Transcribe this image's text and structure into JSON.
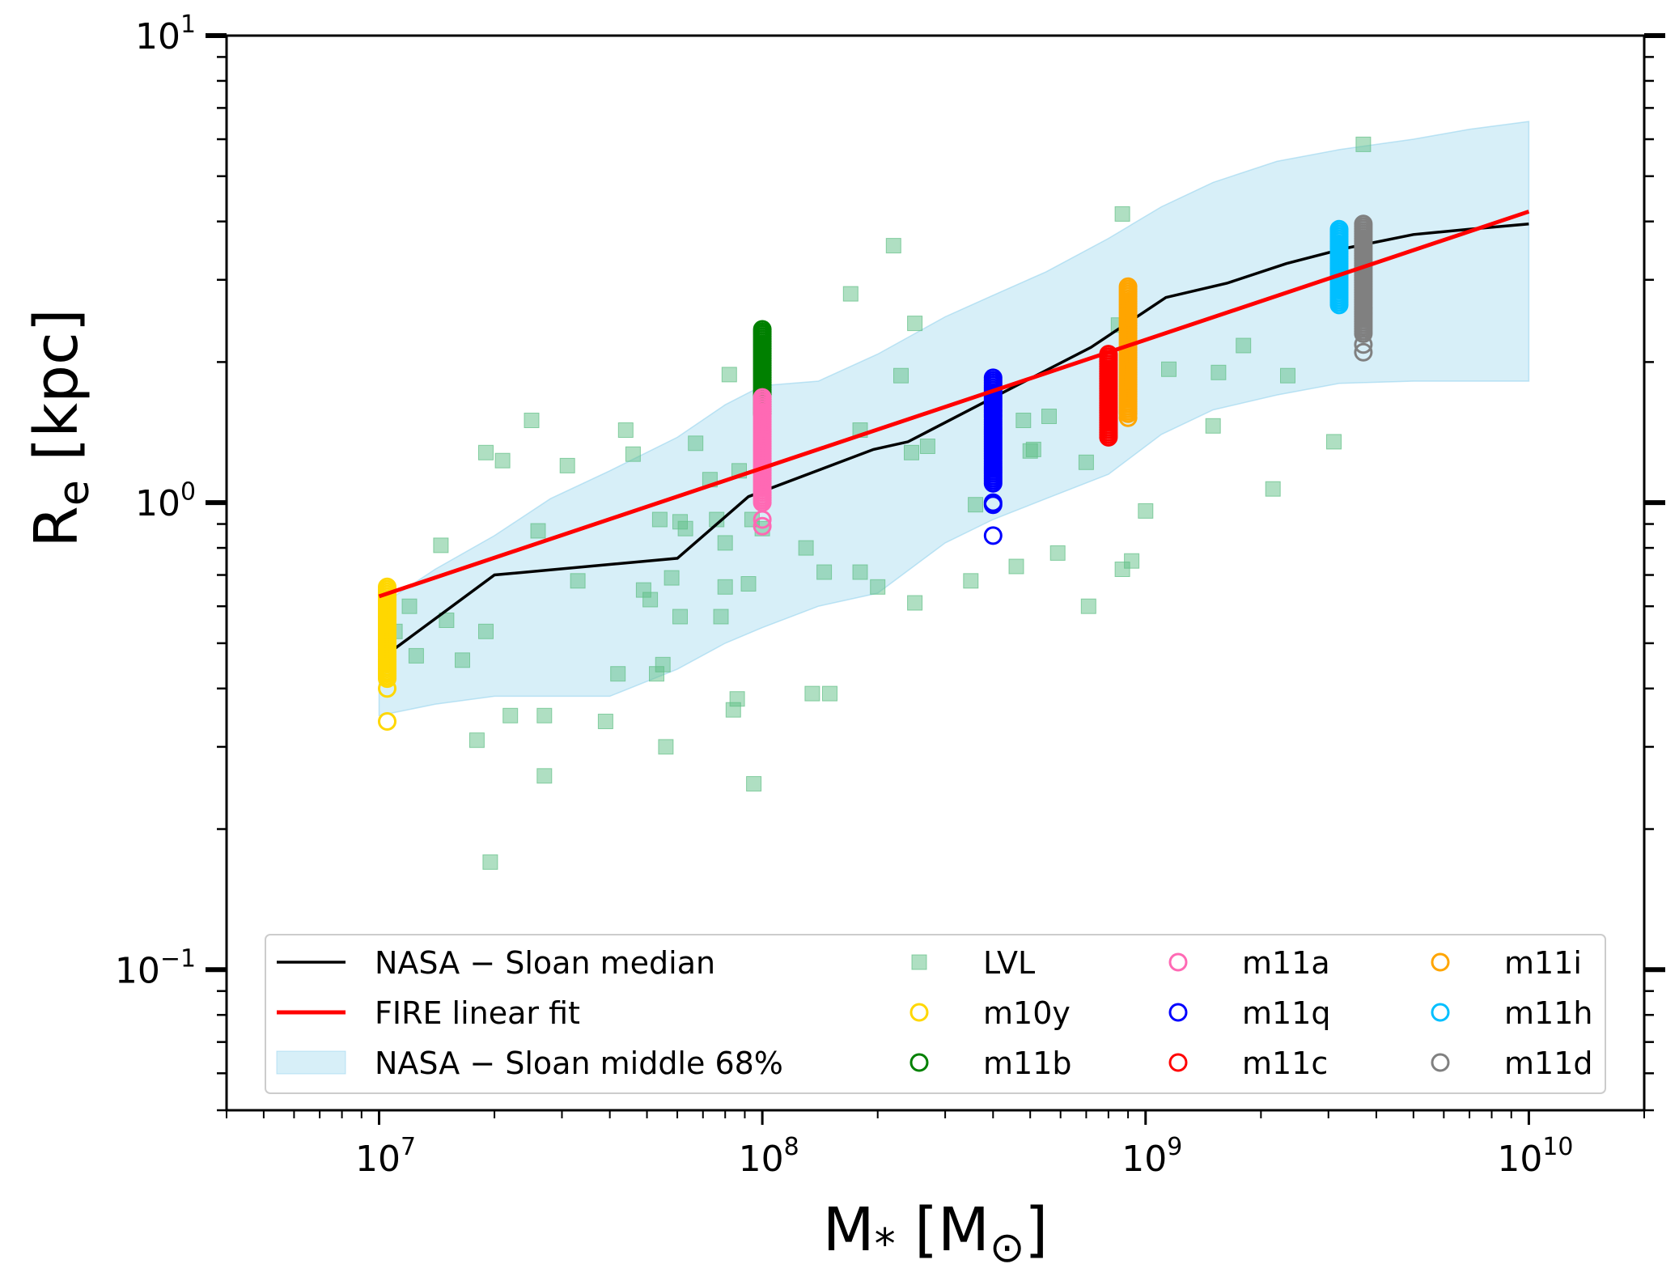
{
  "chart_data": {
    "type": "scatter",
    "xlabel": "M* [M⊙]",
    "ylabel": "Re [kpc]",
    "xscale": "log",
    "yscale": "log",
    "xlim": [
      4000000.0,
      20000000000.0
    ],
    "ylim": [
      0.05,
      10
    ],
    "grid": false,
    "legend_position": "lower-center",
    "x_ticks": [
      {
        "value": 10000000.0,
        "base": "10",
        "exp": "7"
      },
      {
        "value": 100000000.0,
        "base": "10",
        "exp": "8"
      },
      {
        "value": 1000000000.0,
        "base": "10",
        "exp": "9"
      },
      {
        "value": 10000000000.0,
        "base": "10",
        "exp": "10"
      }
    ],
    "y_ticks": [
      {
        "value": 0.1,
        "base": "10",
        "exp": "−1"
      },
      {
        "value": 1,
        "base": "10",
        "exp": "0"
      },
      {
        "value": 10,
        "base": "10",
        "exp": "1"
      }
    ],
    "band": {
      "name": "NASA − Sloan middle 68%",
      "color": "#87ceeb",
      "x": [
        10000000.0,
        14000000.0,
        20000000.0,
        28000000.0,
        40000000.0,
        60000000.0,
        80000000.0,
        100000000.0,
        140000000.0,
        200000000.0,
        300000000.0,
        400000000.0,
        550000000.0,
        800000000.0,
        1100000000.0,
        1500000000.0,
        2200000000.0,
        3200000000.0,
        5000000000.0,
        7000000000.0,
        10000000000.0
      ],
      "upper": [
        0.6,
        0.72,
        0.85,
        1.02,
        1.17,
        1.38,
        1.62,
        1.78,
        1.82,
        2.08,
        2.5,
        2.78,
        3.12,
        3.68,
        4.3,
        4.85,
        5.38,
        5.7,
        6.0,
        6.3,
        6.55
      ],
      "lower": [
        0.35,
        0.37,
        0.385,
        0.385,
        0.385,
        0.44,
        0.5,
        0.54,
        0.6,
        0.64,
        0.82,
        0.92,
        1.02,
        1.15,
        1.4,
        1.58,
        1.7,
        1.8,
        1.82,
        1.82,
        1.82
      ]
    },
    "lvl": {
      "name": "LVL",
      "color": "#5fbf85",
      "points": [
        [
          10500000.0,
          0.58
        ],
        [
          11000000.0,
          0.53
        ],
        [
          12000000.0,
          0.6
        ],
        [
          12500000.0,
          0.47
        ],
        [
          14500000.0,
          0.81
        ],
        [
          15000000.0,
          0.56
        ],
        [
          16500000.0,
          0.46
        ],
        [
          18000000.0,
          0.31
        ],
        [
          19000000.0,
          1.28
        ],
        [
          19000000.0,
          0.53
        ],
        [
          19500000.0,
          0.17
        ],
        [
          21000000.0,
          1.23
        ],
        [
          22000000.0,
          0.35
        ],
        [
          25000000.0,
          1.5
        ],
        [
          26000000.0,
          0.87
        ],
        [
          27000000.0,
          0.26
        ],
        [
          27000000.0,
          0.35
        ],
        [
          31000000.0,
          1.2
        ],
        [
          33000000.0,
          0.68
        ],
        [
          39000000.0,
          0.34
        ],
        [
          42000000.0,
          0.43
        ],
        [
          44000000.0,
          1.43
        ],
        [
          46000000.0,
          1.27
        ],
        [
          49000000.0,
          0.65
        ],
        [
          51000000.0,
          0.62
        ],
        [
          53000000.0,
          0.43
        ],
        [
          54000000.0,
          0.92
        ],
        [
          55000000.0,
          0.45
        ],
        [
          56000000.0,
          0.3
        ],
        [
          58000000.0,
          0.69
        ],
        [
          61000000.0,
          0.57
        ],
        [
          61000000.0,
          0.91
        ],
        [
          63000000.0,
          0.88
        ],
        [
          67000000.0,
          1.34
        ],
        [
          73000000.0,
          1.12
        ],
        [
          76000000.0,
          0.92
        ],
        [
          78000000.0,
          0.57
        ],
        [
          80000000.0,
          0.66
        ],
        [
          80000000.0,
          0.82
        ],
        [
          82000000.0,
          1.88
        ],
        [
          84000000.0,
          0.36
        ],
        [
          86000000.0,
          0.38
        ],
        [
          87000000.0,
          1.17
        ],
        [
          92000000.0,
          0.67
        ],
        [
          94000000.0,
          0.92
        ],
        [
          95000000.0,
          0.25
        ],
        [
          100000000.0,
          0.88
        ],
        [
          130000000.0,
          0.8
        ],
        [
          135000000.0,
          0.39
        ],
        [
          145000000.0,
          0.71
        ],
        [
          150000000.0,
          0.39
        ],
        [
          170000000.0,
          2.8
        ],
        [
          180000000.0,
          1.43
        ],
        [
          180000000.0,
          0.71
        ],
        [
          200000000.0,
          0.66
        ],
        [
          220000000.0,
          3.55
        ],
        [
          230000000.0,
          1.87
        ],
        [
          245000000.0,
          1.28
        ],
        [
          250000000.0,
          2.42
        ],
        [
          250000000.0,
          0.61
        ],
        [
          270000000.0,
          1.32
        ],
        [
          350000000.0,
          0.68
        ],
        [
          360000000.0,
          0.99
        ],
        [
          460000000.0,
          0.73
        ],
        [
          480000000.0,
          1.5
        ],
        [
          500000000.0,
          1.29
        ],
        [
          510000000.0,
          1.3
        ],
        [
          560000000.0,
          1.53
        ],
        [
          590000000.0,
          0.78
        ],
        [
          700000000.0,
          1.22
        ],
        [
          710000000.0,
          0.6
        ],
        [
          850000000.0,
          2.4
        ],
        [
          870000000.0,
          4.15
        ],
        [
          870000000.0,
          0.72
        ],
        [
          920000000.0,
          0.75
        ],
        [
          1000000000.0,
          0.96
        ],
        [
          1150000000.0,
          1.93
        ],
        [
          1500000000.0,
          1.46
        ],
        [
          1550000000.0,
          1.9
        ],
        [
          1800000000.0,
          2.17
        ],
        [
          2150000000.0,
          1.07
        ],
        [
          2350000000.0,
          1.87
        ],
        [
          3100000000.0,
          1.35
        ],
        [
          3700000000.0,
          5.85
        ]
      ]
    },
    "median": {
      "name": "NASA − Sloan median",
      "color": "#000000",
      "x": [
        10000000.0,
        20000000.0,
        60000000.0,
        92000000.0,
        195000000.0,
        240000000.0,
        460000000.0,
        720000000.0,
        1130000000.0,
        1630000000.0,
        2330000000.0,
        3300000000.0,
        5000000000.0,
        7000000000.0,
        10000000000.0
      ],
      "y": [
        0.46,
        0.7,
        0.76,
        1.03,
        1.3,
        1.35,
        1.78,
        2.15,
        2.75,
        2.95,
        3.25,
        3.5,
        3.75,
        3.85,
        3.95
      ]
    },
    "fit": {
      "name": "FIRE linear fit",
      "color": "#ff0000",
      "x": [
        10000000.0,
        10000000000.0
      ],
      "y": [
        0.63,
        4.2
      ]
    },
    "series": [
      {
        "name": "m10y",
        "color": "#ffd700",
        "x": 10500000.0,
        "y_min": 0.42,
        "y_max": 0.66,
        "outliers": [
          0.34,
          0.4
        ]
      },
      {
        "name": "m11b",
        "color": "#008000",
        "x": 100000000.0,
        "y_min": 1.55,
        "y_max": 2.35,
        "outliers": []
      },
      {
        "name": "m11a",
        "color": "#ff69b4",
        "x": 100000000.0,
        "y_min": 1.0,
        "y_max": 1.68,
        "outliers": [
          0.89,
          0.92
        ]
      },
      {
        "name": "m11q",
        "color": "#0000ff",
        "x": 400000000.0,
        "y_min": 1.1,
        "y_max": 1.85,
        "outliers": [
          0.85,
          0.99,
          1.0
        ]
      },
      {
        "name": "m11c",
        "color": "#ff0000",
        "x": 800000000.0,
        "y_min": 1.38,
        "y_max": 2.08,
        "outliers": []
      },
      {
        "name": "m11i",
        "color": "#ffa500",
        "x": 900000000.0,
        "y_min": 1.55,
        "y_max": 2.9,
        "outliers": [
          1.52
        ]
      },
      {
        "name": "m11h",
        "color": "#00bfff",
        "x": 3200000000.0,
        "y_min": 2.65,
        "y_max": 3.85,
        "outliers": []
      },
      {
        "name": "m11d",
        "color": "#808080",
        "x": 3700000000.0,
        "y_min": 2.3,
        "y_max": 3.95,
        "outliers": [
          2.1,
          2.18
        ]
      }
    ],
    "legend": [
      {
        "label": "NASA − Sloan median",
        "kind": "line",
        "color": "#000000"
      },
      {
        "label": "FIRE linear fit",
        "kind": "line",
        "color": "#ff0000"
      },
      {
        "label": "NASA − Sloan middle 68%",
        "kind": "band",
        "color": "#87ceeb"
      },
      {
        "label": "LVL",
        "kind": "square",
        "color": "#5fbf85"
      },
      {
        "label": "m10y",
        "kind": "circle",
        "color": "#ffd700"
      },
      {
        "label": "m11b",
        "kind": "circle",
        "color": "#008000"
      },
      {
        "label": "m11a",
        "kind": "circle",
        "color": "#ff69b4"
      },
      {
        "label": "m11q",
        "kind": "circle",
        "color": "#0000ff"
      },
      {
        "label": "m11c",
        "kind": "circle",
        "color": "#ff0000"
      },
      {
        "label": "m11i",
        "kind": "circle",
        "color": "#ffa500"
      },
      {
        "label": "m11h",
        "kind": "circle",
        "color": "#00bfff"
      },
      {
        "label": "m11d",
        "kind": "circle",
        "color": "#808080"
      }
    ]
  }
}
